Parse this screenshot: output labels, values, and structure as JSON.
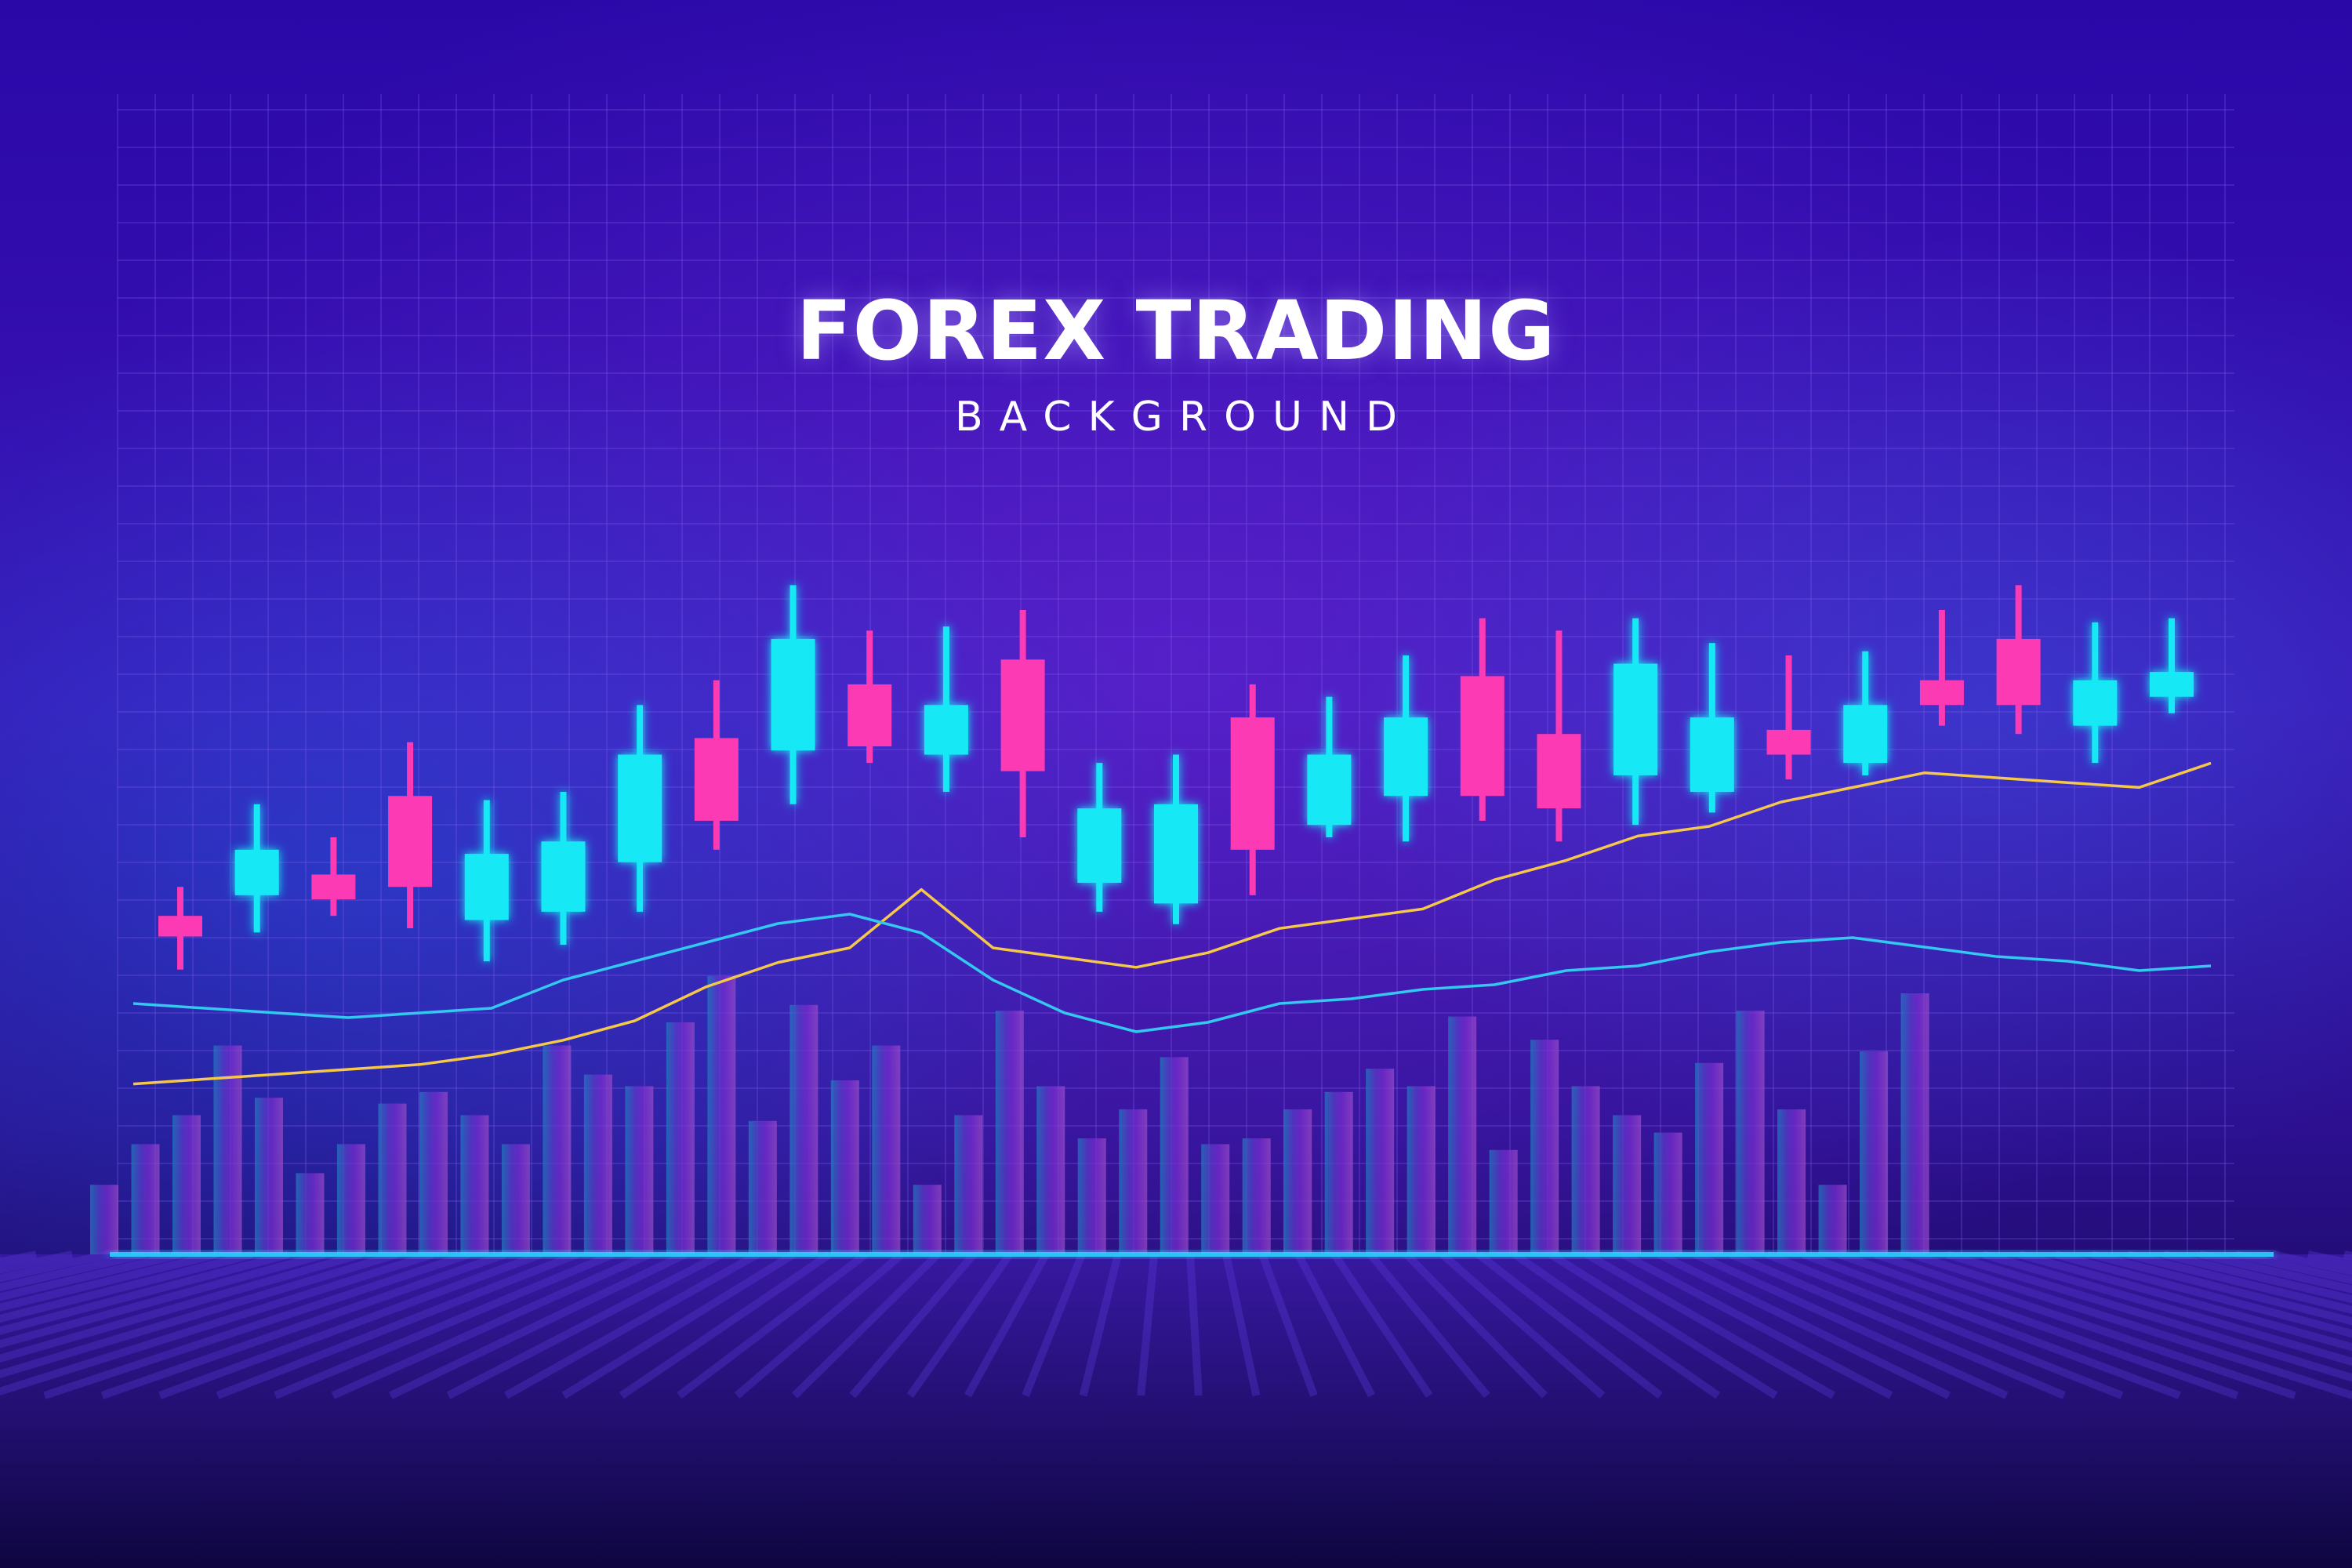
{
  "title": "FOREX TRADING",
  "subtitle": "BACKGROUND",
  "colors": {
    "background_top": "#2a08a8",
    "background_mid": "#4a18c0",
    "background_bottom": "#120844",
    "bull": "#14e8f5",
    "bear": "#fc3ab4",
    "line_yellow": "#f5c84a",
    "line_cyan": "#34c7f0",
    "volume_left": "#1f7fc0",
    "volume_right": "#9a4cc8",
    "floor_glow": "#2fd4ff",
    "grid": "#7a5ae8"
  },
  "chart_data": {
    "type": "candlestick",
    "title": "",
    "xlabel": "",
    "ylabel": "",
    "grid": true,
    "candles": [
      {
        "open": 20,
        "close": 25,
        "high": 32,
        "low": 12,
        "direction": "bear"
      },
      {
        "open": 30,
        "close": 41,
        "high": 52,
        "low": 21,
        "direction": "bull"
      },
      {
        "open": 29,
        "close": 35,
        "high": 44,
        "low": 25,
        "direction": "bear"
      },
      {
        "open": 32,
        "close": 54,
        "high": 67,
        "low": 22,
        "direction": "bear"
      },
      {
        "open": 24,
        "close": 40,
        "high": 53,
        "low": 14,
        "direction": "bull"
      },
      {
        "open": 26,
        "close": 43,
        "high": 55,
        "low": 18,
        "direction": "bull"
      },
      {
        "open": 38,
        "close": 64,
        "high": 76,
        "low": 26,
        "direction": "bull"
      },
      {
        "open": 48,
        "close": 68,
        "high": 82,
        "low": 41,
        "direction": "bear"
      },
      {
        "open": 65,
        "close": 92,
        "high": 105,
        "low": 52,
        "direction": "bull"
      },
      {
        "open": 66,
        "close": 81,
        "high": 94,
        "low": 62,
        "direction": "bear"
      },
      {
        "open": 64,
        "close": 76,
        "high": 95,
        "low": 55,
        "direction": "bull"
      },
      {
        "open": 60,
        "close": 87,
        "high": 99,
        "low": 44,
        "direction": "bear"
      },
      {
        "open": 33,
        "close": 51,
        "high": 62,
        "low": 26,
        "direction": "bull"
      },
      {
        "open": 28,
        "close": 52,
        "high": 64,
        "low": 23,
        "direction": "bull"
      },
      {
        "open": 41,
        "close": 73,
        "high": 81,
        "low": 30,
        "direction": "bear"
      },
      {
        "open": 47,
        "close": 64,
        "high": 78,
        "low": 44,
        "direction": "bull"
      },
      {
        "open": 54,
        "close": 73,
        "high": 88,
        "low": 43,
        "direction": "bull"
      },
      {
        "open": 54,
        "close": 83,
        "high": 97,
        "low": 48,
        "direction": "bear"
      },
      {
        "open": 51,
        "close": 69,
        "high": 94,
        "low": 43,
        "direction": "bear"
      },
      {
        "open": 59,
        "close": 86,
        "high": 97,
        "low": 47,
        "direction": "bull"
      },
      {
        "open": 55,
        "close": 73,
        "high": 91,
        "low": 50,
        "direction": "bull"
      },
      {
        "open": 64,
        "close": 70,
        "high": 88,
        "low": 58,
        "direction": "bear"
      },
      {
        "open": 62,
        "close": 76,
        "high": 89,
        "low": 59,
        "direction": "bull"
      },
      {
        "open": 76,
        "close": 82,
        "high": 99,
        "low": 71,
        "direction": "bear"
      },
      {
        "open": 76,
        "close": 92,
        "high": 105,
        "low": 69,
        "direction": "bear"
      },
      {
        "open": 71,
        "close": 82,
        "high": 96,
        "low": 62,
        "direction": "bull"
      },
      {
        "open": 78,
        "close": 84,
        "high": 97,
        "low": 74,
        "direction": "bull"
      }
    ],
    "lines": [
      {
        "name": "",
        "color": "yellow",
        "values": [
          2,
          3,
          4,
          5,
          6,
          8,
          11,
          15,
          22,
          27,
          30,
          42,
          30,
          28,
          26,
          29,
          34,
          36,
          38,
          44,
          48,
          53,
          55,
          60,
          63,
          66,
          65,
          64,
          63,
          68
        ]
      },
      {
        "name": "",
        "color": "cyan",
        "values": [
          10,
          9,
          8,
          7,
          8,
          9,
          15,
          19,
          23,
          27,
          29,
          25,
          15,
          8,
          4,
          6,
          10,
          11,
          13,
          14,
          17,
          18,
          21,
          23,
          24,
          22,
          20,
          19,
          17,
          18
        ]
      }
    ],
    "volume": [
      12,
      19,
      24,
      36,
      27,
      14,
      19,
      26,
      28,
      24,
      19,
      36,
      31,
      29,
      40,
      48,
      23,
      43,
      30,
      36,
      12,
      24,
      42,
      29,
      20,
      25,
      34,
      19,
      20,
      25,
      28,
      32,
      29,
      41,
      18,
      37,
      29,
      24,
      21,
      33,
      42,
      25,
      12,
      35,
      45
    ]
  }
}
